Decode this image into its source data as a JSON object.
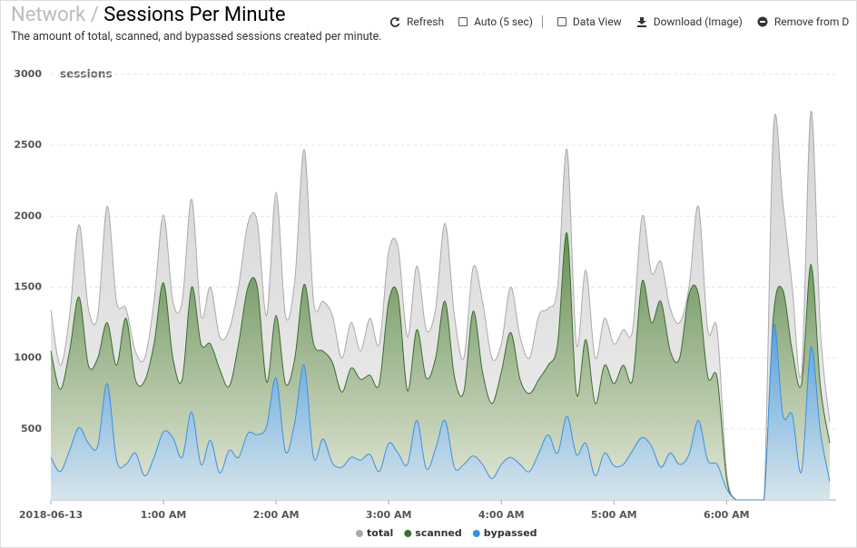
{
  "header": {
    "section": "Network",
    "separator": "/",
    "title": "Sessions Per Minute",
    "subtitle": "The amount of total, scanned, and bypassed sessions created per minute."
  },
  "toolbar": [
    "Refresh",
    "Auto (5 sec)",
    "Data View",
    "Download (Image)",
    "Remove from D"
  ],
  "chart_data": {
    "type": "area",
    "ylabel": "sessions",
    "categories": [
      "2018-06-13",
      null,
      null,
      null,
      null,
      null,
      null,
      null,
      null,
      null,
      null,
      null,
      "1:00 AM",
      null,
      null,
      null,
      null,
      null,
      null,
      null,
      null,
      null,
      null,
      null,
      "2:00 AM",
      null,
      null,
      null,
      null,
      null,
      null,
      null,
      null,
      null,
      null,
      null,
      "3:00 AM",
      null,
      null,
      null,
      null,
      null,
      null,
      null,
      null,
      null,
      null,
      null,
      "4:00 AM",
      null,
      null,
      null,
      null,
      null,
      null,
      null,
      null,
      null,
      null,
      null,
      "5:00 AM",
      null,
      null,
      null,
      null,
      null,
      null,
      null,
      null,
      null,
      null,
      null,
      "6:00 AM",
      null,
      null,
      null,
      null,
      null,
      null,
      null,
      null,
      null,
      null,
      null
    ],
    "ylim": [
      0,
      3000
    ],
    "yticks": [
      500,
      1000,
      1500,
      2000,
      2500,
      3000
    ],
    "grid": true,
    "series": [
      {
        "name": "total",
        "color": "#aaaaaa",
        "values": [
          1340,
          950,
          1300,
          1940,
          1350,
          1300,
          2070,
          1400,
          1350,
          1050,
          1000,
          1400,
          2010,
          1400,
          1400,
          2120,
          1300,
          1500,
          1150,
          1200,
          1500,
          1950,
          1960,
          1300,
          2170,
          1300,
          1550,
          2470,
          1400,
          1400,
          1300,
          1000,
          1250,
          1050,
          1280,
          1100,
          1750,
          1780,
          1150,
          1650,
          1200,
          1350,
          1950,
          1300,
          1000,
          1640,
          1400,
          1000,
          1100,
          1500,
          1150,
          1000,
          1300,
          1350,
          1500,
          2470,
          1100,
          1620,
          1000,
          1280,
          1100,
          1200,
          1200,
          2000,
          1600,
          1680,
          1350,
          1250,
          1500,
          2070,
          1200,
          1200,
          200,
          0,
          0,
          0,
          0,
          2620,
          2100,
          1500,
          900,
          2740,
          1200,
          550
        ]
      },
      {
        "name": "scanned",
        "color": "#3a6e2c",
        "values": [
          1050,
          780,
          1050,
          1430,
          950,
          1000,
          1250,
          950,
          1280,
          850,
          840,
          1100,
          1530,
          1000,
          850,
          1500,
          1100,
          1100,
          920,
          800,
          1100,
          1500,
          1500,
          830,
          1300,
          820,
          1000,
          1520,
          1100,
          1050,
          970,
          760,
          930,
          850,
          880,
          820,
          1400,
          1440,
          770,
          1200,
          860,
          1000,
          1400,
          870,
          760,
          1330,
          900,
          680,
          900,
          1180,
          850,
          750,
          850,
          950,
          1100,
          1880,
          750,
          1130,
          680,
          950,
          820,
          950,
          850,
          1540,
          1250,
          1400,
          1050,
          1000,
          1450,
          1450,
          870,
          860,
          150,
          0,
          0,
          0,
          0,
          1300,
          1480,
          1050,
          820,
          1660,
          800,
          400
        ]
      },
      {
        "name": "bypassed",
        "color": "#3d8fe0",
        "values": [
          300,
          200,
          350,
          510,
          400,
          380,
          820,
          280,
          250,
          330,
          170,
          300,
          480,
          440,
          300,
          620,
          250,
          420,
          190,
          350,
          300,
          470,
          460,
          520,
          860,
          340,
          550,
          950,
          300,
          430,
          260,
          230,
          300,
          280,
          320,
          200,
          400,
          330,
          250,
          560,
          220,
          360,
          560,
          230,
          250,
          310,
          250,
          150,
          250,
          300,
          250,
          200,
          330,
          460,
          330,
          590,
          320,
          400,
          170,
          330,
          240,
          250,
          350,
          440,
          380,
          230,
          330,
          250,
          320,
          560,
          280,
          250,
          80,
          0,
          0,
          0,
          0,
          1230,
          600,
          600,
          200,
          1080,
          480,
          130
        ]
      }
    ]
  }
}
